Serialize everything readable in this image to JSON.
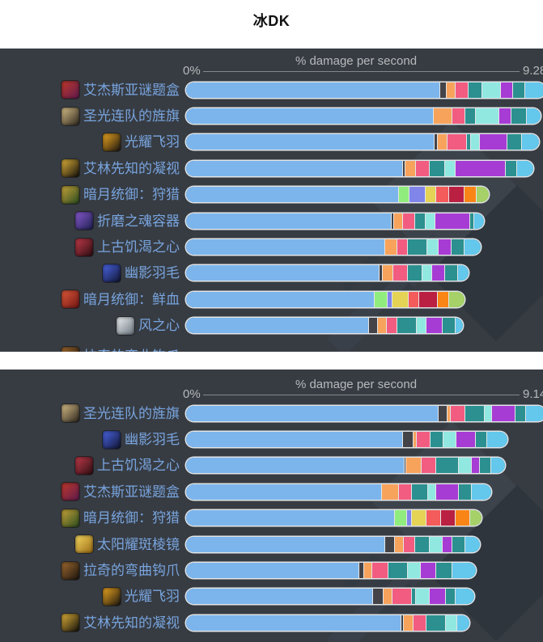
{
  "page_title": "冰DK",
  "axis_title": "% damage per second",
  "axis_min": "0%",
  "theme": {
    "panel_background": "#373c43",
    "label_color": "#78a4de",
    "axis_text_color": "#b6babc",
    "bar_border_color": "#e2e5e7"
  },
  "segment_colors": {
    "blue": "#7cb5ec",
    "dark": "#434348",
    "orange": "#f7a35c",
    "pink": "#f15c80",
    "teal": "#2b908f",
    "aqua": "#91e8e1",
    "purple": "#a73cd4",
    "sky": "#64c7ec",
    "green": "#90ed7d",
    "lpurple": "#8085e9",
    "yellow": "#e4d354",
    "red": "#f45b5b",
    "crimson": "#ba2041",
    "orange2": "#f98517",
    "ygreen": "#a5d168"
  },
  "charts": [
    {
      "axis_max": "9.28",
      "rows": [
        {
          "label": "艾杰斯亚谜题盒",
          "icon": "puzzle-box-icon",
          "icon_colors": [
            "#c0392b",
            "#5e1a4e"
          ],
          "segments": [
            [
              "blue",
              313
            ],
            [
              "dark",
              8
            ],
            [
              "orange",
              11
            ],
            [
              "pink",
              16
            ],
            [
              "teal",
              17
            ],
            [
              "aqua",
              23
            ],
            [
              "purple",
              15
            ],
            [
              "teal",
              15
            ],
            [
              "sky",
              26
            ]
          ]
        },
        {
          "label": "圣光连队的旌旗",
          "icon": "banner-icon",
          "icon_colors": [
            "#d9c089",
            "#2a241c"
          ],
          "segments": [
            [
              "blue",
              305
            ],
            [
              "orange",
              23
            ],
            [
              "pink",
              16
            ],
            [
              "teal",
              13
            ],
            [
              "aqua",
              29
            ],
            [
              "purple",
              15
            ],
            [
              "teal",
              19
            ],
            [
              "sky",
              18
            ]
          ]
        },
        {
          "label": "光耀飞羽",
          "icon": "radiant-feather-icon",
          "icon_colors": [
            "#f0a820",
            "#171310"
          ],
          "segments": [
            [
              "blue",
              306
            ],
            [
              "dark",
              4
            ],
            [
              "orange",
              12
            ],
            [
              "pink",
              24
            ],
            [
              "teal",
              5
            ],
            [
              "aqua",
              11
            ],
            [
              "purple",
              34
            ],
            [
              "teal",
              18
            ],
            [
              "sky",
              22
            ]
          ]
        },
        {
          "label": "艾林先知的凝视",
          "icon": "seer-gaze-icon",
          "icon_colors": [
            "#e0b23a",
            "#0f0d0a"
          ],
          "segments": [
            [
              "blue",
              267
            ],
            [
              "dark",
              3
            ],
            [
              "orange",
              13
            ],
            [
              "pink",
              17
            ],
            [
              "teal",
              19
            ],
            [
              "aqua",
              13
            ],
            [
              "purple",
              62
            ],
            [
              "teal",
              14
            ],
            [
              "sky",
              21
            ]
          ]
        },
        {
          "label": "暗月统御：狩猎",
          "icon": "darkmoon-hunt-card-icon",
          "icon_colors": [
            "#c8a43a",
            "#274a1e"
          ],
          "segments": [
            [
              "blue",
              262
            ],
            [
              "green",
              13
            ],
            [
              "lpurple",
              20
            ],
            [
              "yellow",
              13
            ],
            [
              "red",
              16
            ],
            [
              "crimson",
              19
            ],
            [
              "orange2",
              15
            ],
            [
              "ygreen",
              16
            ]
          ]
        },
        {
          "label": "折磨之魂容器",
          "icon": "soul-vessel-icon",
          "icon_colors": [
            "#8a5ad0",
            "#1c2050"
          ],
          "segments": [
            [
              "blue",
              253
            ],
            [
              "dark",
              3
            ],
            [
              "orange",
              11
            ],
            [
              "pink",
              15
            ],
            [
              "teal",
              13
            ],
            [
              "aqua",
              12
            ],
            [
              "purple",
              43
            ],
            [
              "teal",
              5
            ],
            [
              "sky",
              13
            ]
          ]
        },
        {
          "label": "上古饥渴之心",
          "icon": "hungering-heart-icon",
          "icon_colors": [
            "#c23a4a",
            "#2a0d12"
          ],
          "segments": [
            [
              "blue",
              245
            ],
            [
              "orange",
              15
            ],
            [
              "pink",
              13
            ],
            [
              "teal",
              24
            ],
            [
              "aqua",
              14
            ],
            [
              "purple",
              16
            ],
            [
              "teal",
              16
            ],
            [
              "sky",
              21
            ]
          ]
        },
        {
          "label": "幽影羽毛",
          "icon": "umbral-feather-icon",
          "icon_colors": [
            "#4a66e8",
            "#10142e"
          ],
          "segments": [
            [
              "blue",
              238
            ],
            [
              "dark",
              4
            ],
            [
              "orange",
              13
            ],
            [
              "pink",
              18
            ],
            [
              "teal",
              18
            ],
            [
              "aqua",
              12
            ],
            [
              "purple",
              16
            ],
            [
              "teal",
              16
            ],
            [
              "sky",
              14
            ]
          ]
        },
        {
          "label": "暗月统御：鲜血",
          "icon": "darkmoon-blood-card-icon",
          "icon_colors": [
            "#e05a3a",
            "#6e1414"
          ],
          "segments": [
            [
              "blue",
              232
            ],
            [
              "green",
              16
            ],
            [
              "lpurple",
              6
            ],
            [
              "yellow",
              20
            ],
            [
              "red",
              13
            ],
            [
              "crimson",
              23
            ],
            [
              "orange2",
              14
            ],
            [
              "ygreen",
              20
            ]
          ]
        },
        {
          "label": "风之心",
          "icon": "heart-of-wind-icon",
          "icon_colors": [
            "#eef2f5",
            "#6a737c"
          ],
          "segments": [
            [
              "blue",
              225
            ],
            [
              "dark",
              11
            ],
            [
              "orange",
              11
            ],
            [
              "pink",
              13
            ],
            [
              "teal",
              24
            ],
            [
              "aqua",
              12
            ],
            [
              "purple",
              20
            ],
            [
              "teal",
              16
            ],
            [
              "sky",
              10
            ]
          ]
        },
        {
          "label": "拉奇的弯曲钩爪",
          "icon": "curved-hook-claw-icon",
          "icon_colors": [
            "#a06a30",
            "#1a140e"
          ],
          "segments": [],
          "clipped": true
        }
      ]
    },
    {
      "axis_max": "9.14",
      "rows": [
        {
          "label": "圣光连队的旌旗",
          "icon": "banner-icon",
          "icon_colors": [
            "#d9c089",
            "#2a241c"
          ],
          "segments": [
            [
              "blue",
              311
            ],
            [
              "dark",
              11
            ],
            [
              "orange",
              4
            ],
            [
              "pink",
              18
            ],
            [
              "teal",
              24
            ],
            [
              "aqua",
              9
            ],
            [
              "purple",
              29
            ],
            [
              "teal",
              13
            ],
            [
              "sky",
              25
            ]
          ]
        },
        {
          "label": "幽影羽毛",
          "icon": "umbral-feather-icon",
          "icon_colors": [
            "#4a66e8",
            "#10142e"
          ],
          "segments": [
            [
              "blue",
              267
            ],
            [
              "dark",
              13
            ],
            [
              "orange",
              4
            ],
            [
              "pink",
              17
            ],
            [
              "teal",
              16
            ],
            [
              "aqua",
              16
            ],
            [
              "purple",
              24
            ],
            [
              "teal",
              14
            ],
            [
              "sky",
              26
            ]
          ]
        },
        {
          "label": "上古饥渴之心",
          "icon": "hungering-heart-icon",
          "icon_colors": [
            "#c23a4a",
            "#2a0d12"
          ],
          "segments": [
            [
              "blue",
              269
            ],
            [
              "dark",
              2
            ],
            [
              "orange",
              19
            ],
            [
              "pink",
              18
            ],
            [
              "teal",
              28
            ],
            [
              "aqua",
              16
            ],
            [
              "purple",
              10
            ],
            [
              "teal",
              14
            ],
            [
              "sky",
              18
            ]
          ]
        },
        {
          "label": "艾杰斯亚谜题盒",
          "icon": "puzzle-box-icon",
          "icon_colors": [
            "#c0392b",
            "#5e1a4e"
          ],
          "segments": [
            [
              "blue",
              241
            ],
            [
              "orange",
              21
            ],
            [
              "pink",
              16
            ],
            [
              "teal",
              20
            ],
            [
              "aqua",
              10
            ],
            [
              "purple",
              28
            ],
            [
              "teal",
              16
            ],
            [
              "sky",
              25
            ]
          ]
        },
        {
          "label": "暗月统御：狩猎",
          "icon": "darkmoon-hunt-card-icon",
          "icon_colors": [
            "#c8a43a",
            "#274a1e"
          ],
          "segments": [
            [
              "blue",
              257
            ],
            [
              "green",
              15
            ],
            [
              "lpurple",
              6
            ],
            [
              "yellow",
              18
            ],
            [
              "red",
              18
            ],
            [
              "crimson",
              18
            ],
            [
              "orange2",
              18
            ],
            [
              "ygreen",
              15
            ]
          ]
        },
        {
          "label": "太阳耀斑棱镜",
          "icon": "solar-prism-icon",
          "icon_colors": [
            "#f5d860",
            "#9a6a14"
          ],
          "segments": [
            [
              "blue",
              245
            ],
            [
              "dark",
              12
            ],
            [
              "orange",
              11
            ],
            [
              "pink",
              14
            ],
            [
              "teal",
              18
            ],
            [
              "aqua",
              16
            ],
            [
              "purple",
              12
            ],
            [
              "teal",
              16
            ],
            [
              "sky",
              19
            ]
          ]
        },
        {
          "label": "拉奇的弯曲钩爪",
          "icon": "curved-hook-claw-icon",
          "icon_colors": [
            "#a06a30",
            "#1a140e"
          ],
          "segments": [
            [
              "blue",
              213
            ],
            [
              "dark",
              6
            ],
            [
              "orange",
              10
            ],
            [
              "pink",
              20
            ],
            [
              "teal",
              24
            ],
            [
              "aqua",
              16
            ],
            [
              "purple",
              19
            ],
            [
              "teal",
              20
            ],
            [
              "sky",
              30
            ]
          ]
        },
        {
          "label": "光耀飞羽",
          "icon": "radiant-feather-icon",
          "icon_colors": [
            "#f0a820",
            "#171310"
          ],
          "segments": [
            [
              "blue",
              230
            ],
            [
              "dark",
              13
            ],
            [
              "orange",
              11
            ],
            [
              "pink",
              24
            ],
            [
              "teal",
              5
            ],
            [
              "aqua",
              17
            ],
            [
              "purple",
              20
            ],
            [
              "teal",
              12
            ],
            [
              "sky",
              24
            ]
          ]
        },
        {
          "label": "艾林先知的凝视",
          "icon": "seer-gaze-icon",
          "icon_colors": [
            "#e0b23a",
            "#0f0d0a"
          ],
          "segments": [
            [
              "blue",
              265
            ],
            [
              "dark",
              3
            ],
            [
              "orange",
              12
            ],
            [
              "pink",
              16
            ],
            [
              "teal",
              24
            ],
            [
              "aqua",
              14
            ],
            [
              "sky",
              16
            ]
          ]
        }
      ]
    }
  ],
  "chart_data": [
    {
      "type": "bar",
      "orientation": "horizontal-stacked",
      "title": "% damage per second",
      "xlabel": "% damage per second",
      "xlim": [
        0,
        9.28
      ],
      "axis_labels": [
        "0%",
        "9.28"
      ],
      "grid": false,
      "legend": "none",
      "categories": [
        "艾杰斯亚谜题盒",
        "圣光连队的旌旗",
        "光耀飞羽",
        "艾林先知的凝视",
        "暗月统御：狩猎",
        "折磨之魂容器",
        "上古饥渴之心",
        "幽影羽毛",
        "暗月统御：鲜血",
        "风之心"
      ],
      "totals_pct": [
        9.28,
        9.15,
        9.11,
        8.97,
        7.82,
        7.69,
        7.61,
        7.29,
        7.19,
        7.15
      ],
      "note": "each bar is a stacked damage breakdown; segment widths stored in charts[0].rows[].segments as [colorKey, px]"
    },
    {
      "type": "bar",
      "orientation": "horizontal-stacked",
      "title": "% damage per second",
      "xlabel": "% damage per second",
      "xlim": [
        0,
        9.14
      ],
      "axis_labels": [
        "0%",
        "9.14"
      ],
      "grid": false,
      "legend": "none",
      "categories": [
        "圣光连队的旌旗",
        "幽影羽毛",
        "上古饥渴之心",
        "艾杰斯亚谜题盒",
        "暗月统御：狩猎",
        "太阳耀斑棱镜",
        "拉奇的弯曲钩爪",
        "光耀飞羽",
        "艾林先知的凝视"
      ],
      "totals_pct": [
        9.14,
        8.17,
        8.11,
        7.76,
        7.51,
        7.47,
        7.37,
        7.33,
        7.21
      ],
      "note": "each bar is a stacked damage breakdown; segment widths stored in charts[1].rows[].segments as [colorKey, px]"
    }
  ]
}
